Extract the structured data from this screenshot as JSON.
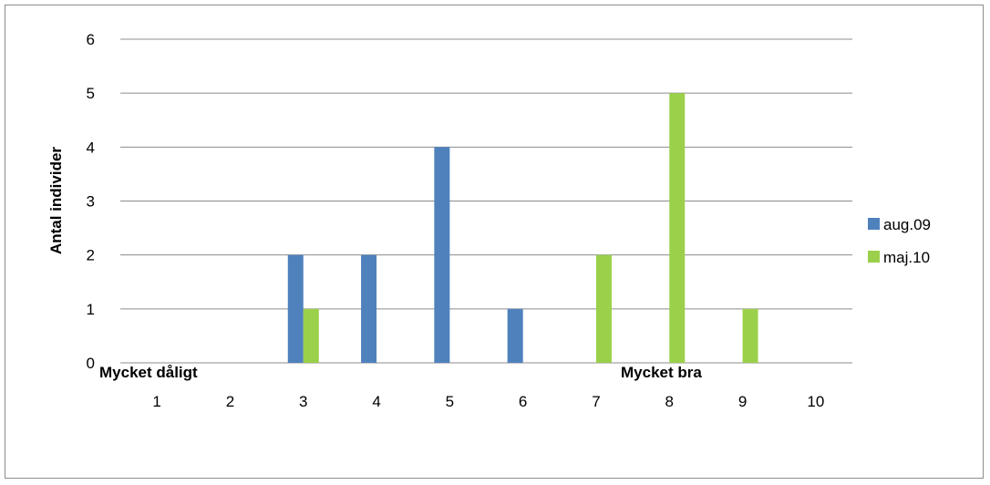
{
  "chart_data": {
    "type": "bar",
    "categories": [
      "1",
      "2",
      "3",
      "4",
      "5",
      "6",
      "7",
      "8",
      "9",
      "10"
    ],
    "series": [
      {
        "name": "aug.09",
        "color": "#4F81BD",
        "values": [
          0,
          0,
          2,
          2,
          4,
          1,
          0,
          0,
          0,
          0
        ]
      },
      {
        "name": "maj.10",
        "color": "#9BD04A",
        "values": [
          0,
          0,
          1,
          0,
          0,
          0,
          2,
          5,
          1,
          0
        ]
      }
    ],
    "yticks": [
      "0",
      "1",
      "2",
      "3",
      "4",
      "5",
      "6"
    ],
    "ylim": [
      0,
      6
    ],
    "ylabel": "Antal individer",
    "scale_labels": {
      "low": "Mycket dåligt",
      "high": "Mycket bra"
    },
    "grid": true,
    "legend_position": "right"
  }
}
